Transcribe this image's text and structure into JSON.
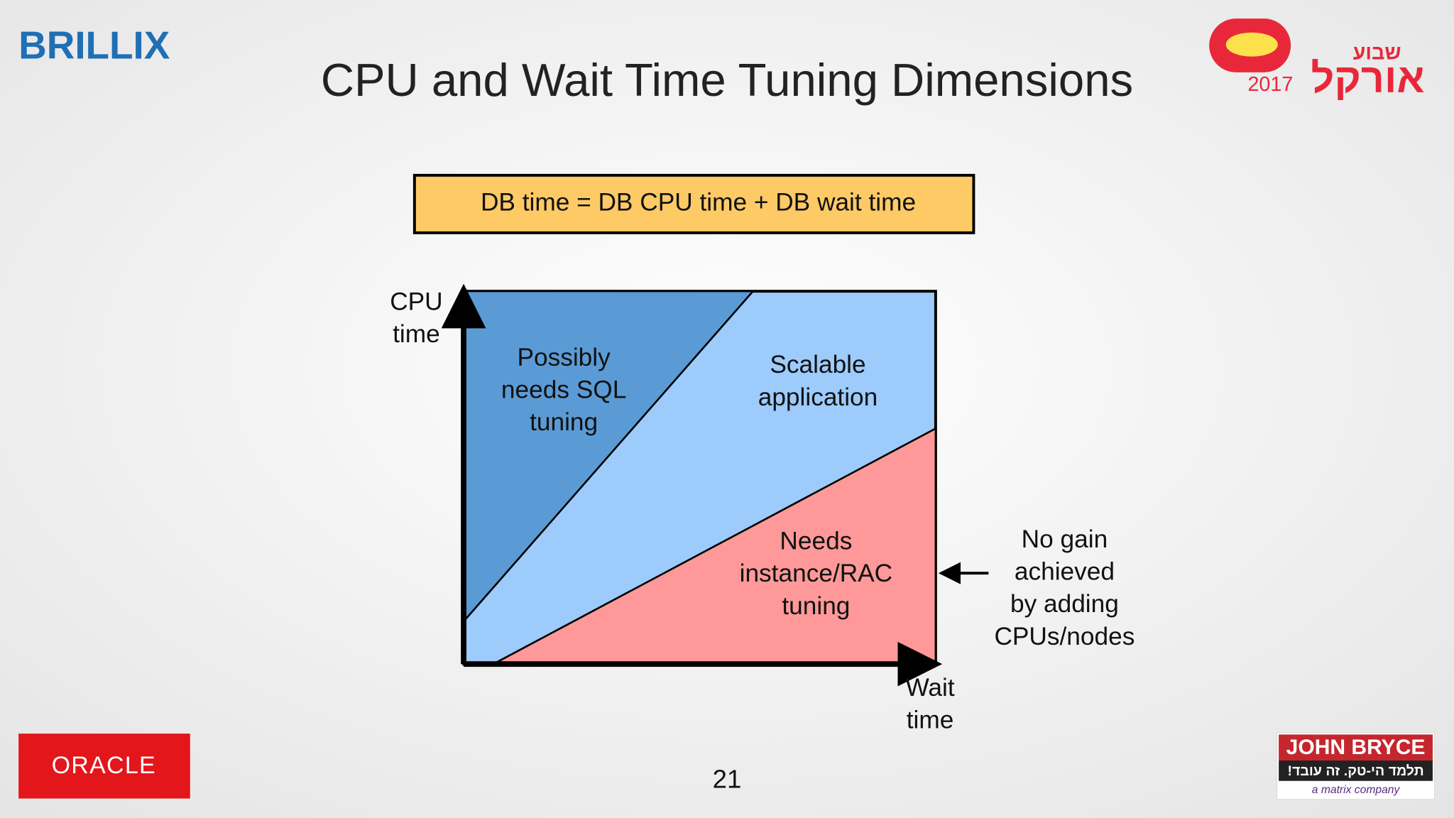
{
  "logos": {
    "brillix": "BRILLIX",
    "oracle": "ORACLE",
    "event": {
      "name": "שבוע",
      "brand": "אורקל",
      "year": "2017"
    },
    "john_bryce": {
      "name": "JOHN BRYCE",
      "slogan": "תלמד הי-טק. זה עובד!",
      "tagline": "a matrix company"
    }
  },
  "header": {
    "title": "CPU and Wait Time Tuning Dimensions"
  },
  "formula": "DB time = DB CPU time + DB wait time",
  "diagram": {
    "y_axis_label": [
      "CPU",
      "time"
    ],
    "x_axis_label": [
      "Wait",
      "time"
    ],
    "regions": [
      {
        "label": [
          "Possibly",
          "needs SQL",
          "tuning"
        ]
      },
      {
        "label": [
          "Scalable",
          "application"
        ]
      },
      {
        "label": [
          "Needs",
          "instance/RAC",
          "tuning"
        ]
      }
    ],
    "annotation": [
      "No gain",
      "achieved",
      "by adding",
      "CPUs/nodes"
    ]
  },
  "page_number": "21"
}
